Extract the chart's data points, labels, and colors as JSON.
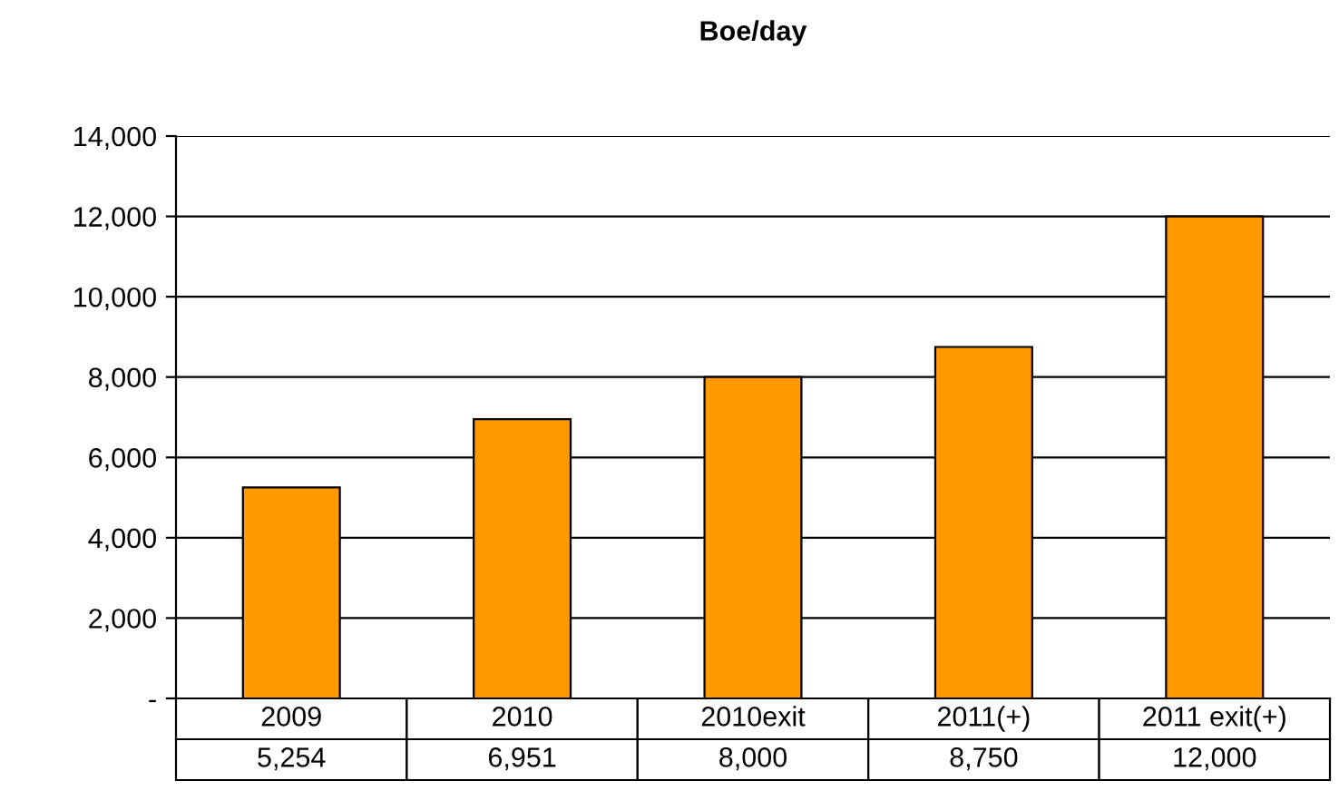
{
  "chart_data": {
    "type": "bar",
    "title": "Boe/day",
    "categories": [
      "2009",
      "2010",
      "2010exit",
      "2011(+)",
      "2011 exit(+)"
    ],
    "values": [
      5254,
      6951,
      8000,
      8750,
      12000
    ],
    "color": "#ff9900",
    "ylim": [
      0,
      14000
    ],
    "yticks": [
      {
        "value": 0,
        "label": "-"
      },
      {
        "value": 2000,
        "label": "2,000"
      },
      {
        "value": 4000,
        "label": "4,000"
      },
      {
        "value": 6000,
        "label": "6,000"
      },
      {
        "value": 8000,
        "label": "8,000"
      },
      {
        "value": 10000,
        "label": "10,000"
      },
      {
        "value": 12000,
        "label": "12,000"
      },
      {
        "value": 14000,
        "label": "14,000"
      }
    ],
    "grid": "y",
    "value_labels": [
      "5,254",
      "6,951",
      "8,000",
      "8,750",
      "12,000"
    ]
  }
}
